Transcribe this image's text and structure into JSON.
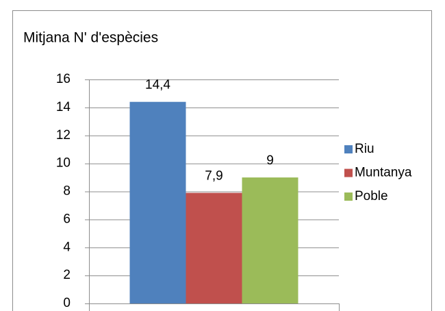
{
  "chart_data": {
    "type": "bar",
    "title": "Mitjana  N' d'espècies",
    "categories": [
      null
    ],
    "series": [
      {
        "name": "Riu",
        "color": "#4f81bd",
        "values": [
          14.4
        ],
        "value_labels": [
          "14,4"
        ]
      },
      {
        "name": "Muntanya",
        "color": "#c0504d",
        "values": [
          7.9
        ],
        "value_labels": [
          "7,9"
        ]
      },
      {
        "name": "Poble",
        "color": "#9bbb59",
        "values": [
          9
        ],
        "value_labels": [
          "9"
        ]
      }
    ],
    "ylim": [
      0,
      16
    ],
    "yticks": [
      0,
      2,
      4,
      6,
      8,
      10,
      12,
      14,
      16
    ],
    "grid": true,
    "legend": "right"
  }
}
